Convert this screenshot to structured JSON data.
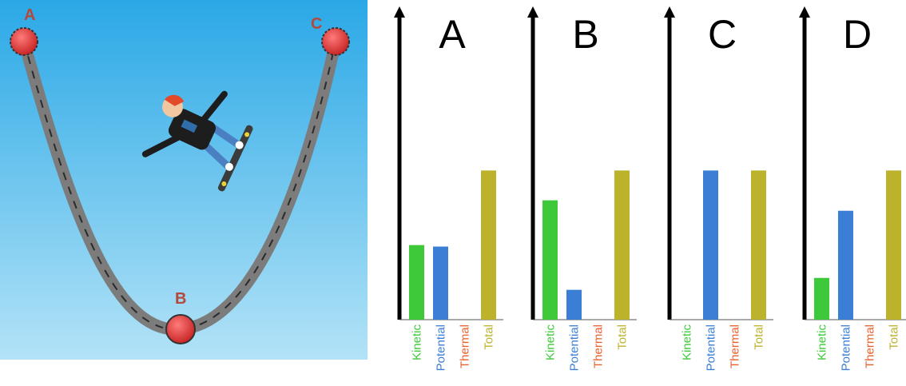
{
  "scene": {
    "points": {
      "a": "A",
      "b": "B",
      "c": "C"
    },
    "colors": {
      "sky_top": "#2aa8e6",
      "sky_bottom": "#b3e3f7",
      "track": "#7c7c7c",
      "ball": "#e23535",
      "label": "#b4493b"
    }
  },
  "series_colors": {
    "Kinetic": "#3ec93a",
    "Potential": "#3a7fd5",
    "Thermal": "#e8612e",
    "Total": "#bdb22c"
  },
  "chart_data": [
    {
      "type": "bar",
      "title": "A",
      "categories": [
        "Kinetic",
        "Potential",
        "Thermal",
        "Total"
      ],
      "values": [
        0.5,
        0.49,
        0,
        1.0
      ],
      "ylim": [
        0,
        2.1
      ]
    },
    {
      "type": "bar",
      "title": "B",
      "categories": [
        "Kinetic",
        "Potential",
        "Thermal",
        "Total"
      ],
      "values": [
        0.8,
        0.2,
        0,
        1.0
      ],
      "ylim": [
        0,
        2.1
      ]
    },
    {
      "type": "bar",
      "title": "C",
      "categories": [
        "Kinetic",
        "Potential",
        "Thermal",
        "Total"
      ],
      "values": [
        0,
        1.0,
        0,
        1.0
      ],
      "ylim": [
        0,
        2.1
      ]
    },
    {
      "type": "bar",
      "title": "D",
      "categories": [
        "Kinetic",
        "Potential",
        "Thermal",
        "Total"
      ],
      "values": [
        0.28,
        0.73,
        0,
        1.0
      ],
      "ylim": [
        0,
        2.1
      ]
    }
  ]
}
